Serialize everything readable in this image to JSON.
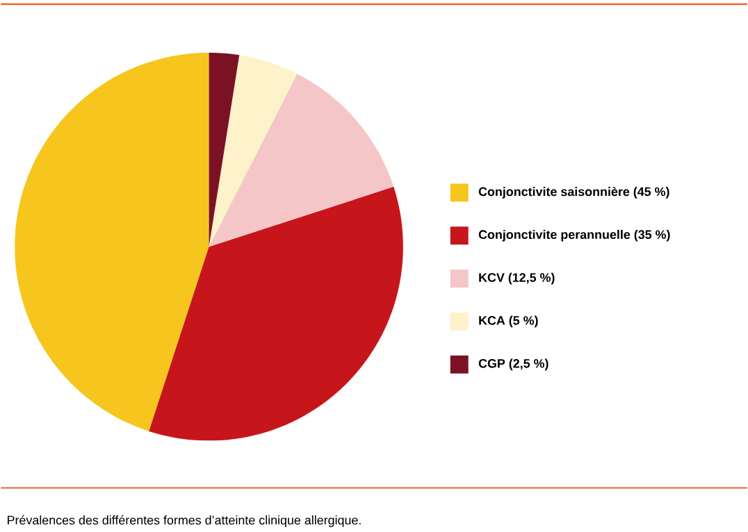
{
  "chart_data": {
    "type": "pie",
    "categories": [
      "Conjonctivite saisonnière (45 %)",
      "Conjonctivite perannuelle (35 %)",
      "KCV (12,5 %)",
      "KCA (5 %)",
      "CGP (2,5 %)"
    ],
    "values": [
      45,
      35,
      12.5,
      5,
      2.5
    ],
    "colors": [
      "#f6c61e",
      "#c6161c",
      "#f5c6c8",
      "#fdf2c9",
      "#7b1224"
    ],
    "legend": "right",
    "annotations": [
      "Prévalences des différentes formes d’atteinte clinique allergique."
    ]
  }
}
